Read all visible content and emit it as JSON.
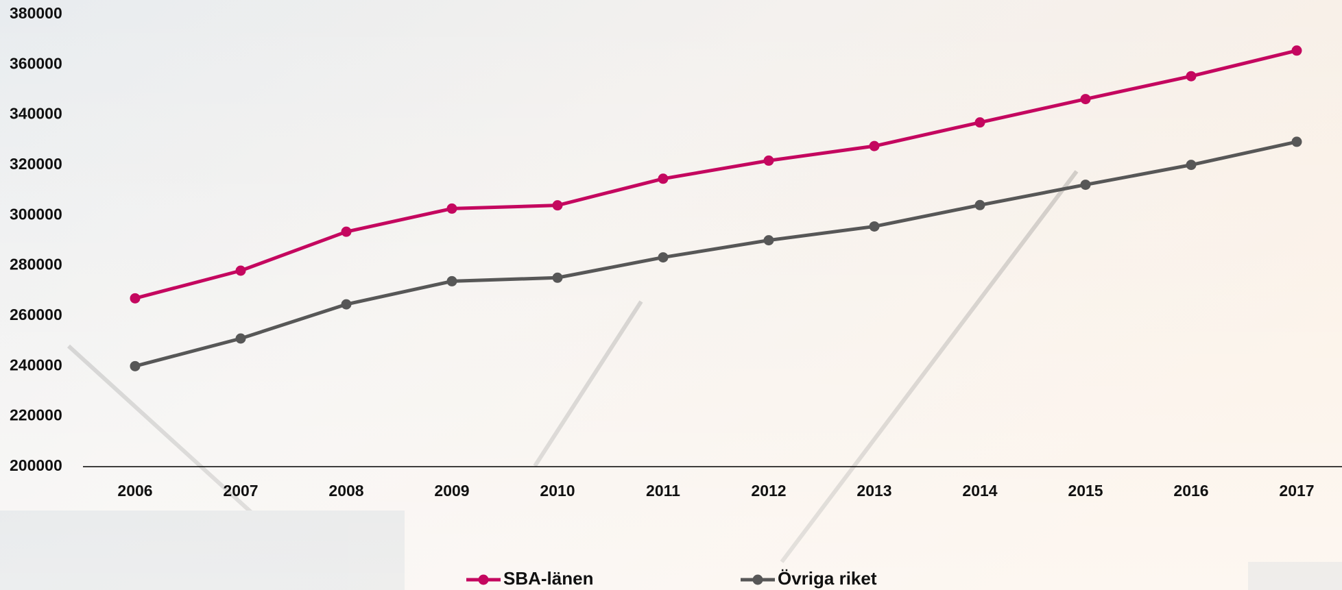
{
  "chart_data": {
    "type": "line",
    "x": [
      "2006",
      "2007",
      "2008",
      "2009",
      "2010",
      "2011",
      "2012",
      "2013",
      "2014",
      "2015",
      "2016",
      "2017"
    ],
    "series": [
      {
        "name": "SBA-länen",
        "color": "#c4075f",
        "values": [
          267000,
          278000,
          293500,
          302700,
          304000,
          314600,
          321800,
          327600,
          337000,
          346300,
          355400,
          365600
        ]
      },
      {
        "name": "Övriga riket",
        "color": "#575757",
        "values": [
          240000,
          251000,
          264600,
          273800,
          275200,
          283300,
          290100,
          295600,
          304100,
          312200,
          320100,
          329300
        ]
      }
    ],
    "ylim": [
      200000,
      380000
    ],
    "yticks": [
      200000,
      220000,
      240000,
      260000,
      280000,
      300000,
      320000,
      340000,
      360000,
      380000
    ],
    "legend": "bottom"
  }
}
